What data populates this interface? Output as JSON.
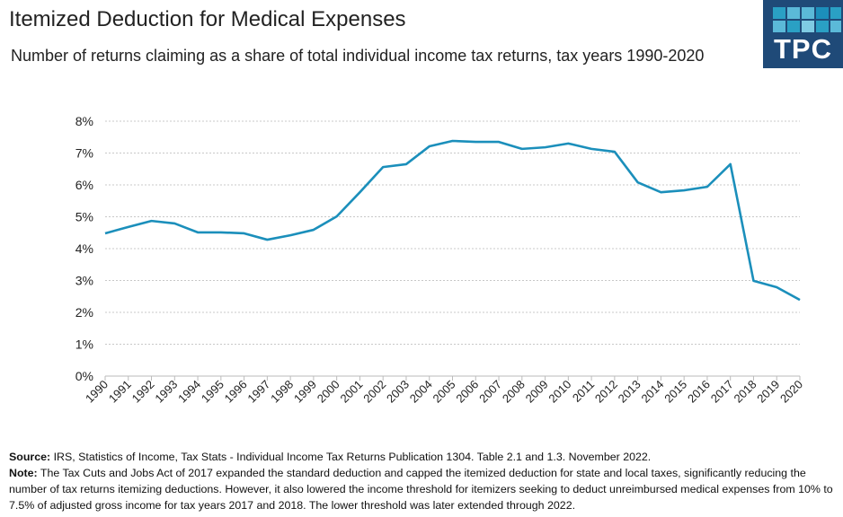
{
  "header": {
    "title": "Itemized Deduction for Medical Expenses",
    "subtitle": "Number of returns claiming as a share of total individual income tax returns, tax years 1990-2020"
  },
  "logo": {
    "text": "TPC",
    "bg": "#1f4a78"
  },
  "footer": {
    "source_label": "Source:",
    "source_text": " IRS, Statistics of Income, Tax Stats - Individual Income Tax Returns Publication 1304. Table 2.1 and 1.3.  November 2022.",
    "note_label": "Note:",
    "note_text": " The Tax Cuts and Jobs Act of 2017  expanded the standard deduction and capped the itemized deduction for state and local taxes, significantly reducing the number of tax returns itemizing deductions. However, it also lowered the income threshold for itemizers seeking to deduct unreimbursed medical expenses from 10% to 7.5%  of adjusted gross income for tax years 2017  and 2018.  The lower threshold was later extended through 2022."
  },
  "chart_data": {
    "type": "line",
    "title": "Itemized Deduction for Medical Expenses",
    "xlabel": "",
    "ylabel": "",
    "x": [
      "1990",
      "1991",
      "1992",
      "1993",
      "1994",
      "1995",
      "1996",
      "1997",
      "1998",
      "1999",
      "2000",
      "2001",
      "2002",
      "2003",
      "2004",
      "2005",
      "2006",
      "2007",
      "2008",
      "2009",
      "2010",
      "2011",
      "2012",
      "2013",
      "2014",
      "2015",
      "2016",
      "2017",
      "2018",
      "2019",
      "2020"
    ],
    "series": [
      {
        "name": "Share of returns",
        "color": "#1b8fbb",
        "values": [
          4.48,
          4.68,
          4.87,
          4.79,
          4.51,
          4.51,
          4.48,
          4.28,
          4.42,
          4.59,
          5.01,
          5.77,
          6.56,
          6.65,
          7.21,
          7.38,
          7.35,
          7.35,
          7.13,
          7.18,
          7.3,
          7.13,
          7.04,
          6.08,
          5.77,
          5.83,
          5.94,
          6.65,
          2.99,
          2.79,
          2.39
        ]
      }
    ],
    "ylim": [
      0,
      8
    ],
    "yticks": [
      "0%",
      "1%",
      "2%",
      "3%",
      "4%",
      "5%",
      "6%",
      "7%",
      "8%"
    ],
    "grid": true
  }
}
